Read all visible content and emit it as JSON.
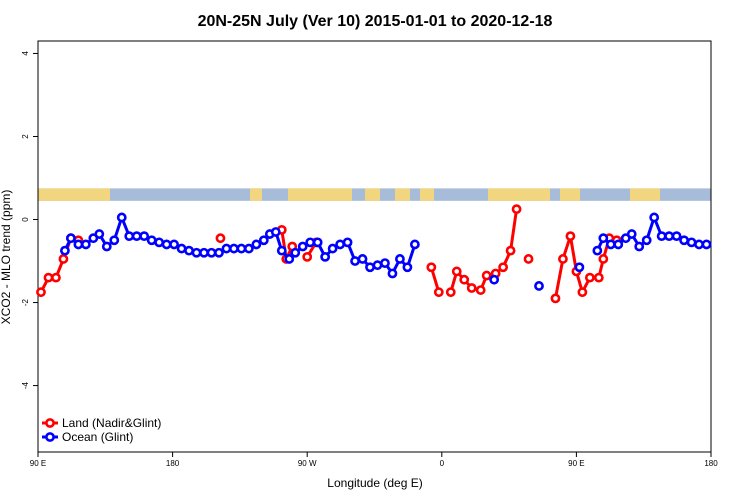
{
  "chart_data": {
    "type": "line",
    "title": "20N-25N July (Ver 10)   2015-01-01 to 2020-12-18",
    "xlabel": "Longitude (deg E)",
    "ylabel": "XCO2 - MLO trend (ppm)",
    "xlim": [
      90,
      540
    ],
    "ylim": [
      -5.6,
      4.3
    ],
    "x_ticks": [
      {
        "value": 90,
        "label": "90 E"
      },
      {
        "value": 180,
        "label": "180"
      },
      {
        "value": 270,
        "label": "90 W"
      },
      {
        "value": 360,
        "label": "0"
      },
      {
        "value": 450,
        "label": "90 E"
      },
      {
        "value": 540,
        "label": "180"
      }
    ],
    "y_ticks": [
      {
        "value": -4,
        "label": "-4"
      },
      {
        "value": -2,
        "label": "-2"
      },
      {
        "value": 0,
        "label": "0"
      },
      {
        "value": 2,
        "label": "2"
      },
      {
        "value": 4,
        "label": "4"
      }
    ],
    "map_strip": {
      "ymin": 0.45,
      "ymax": 0.75,
      "ocean_color": "#a6bcd9",
      "land_color": "#f6d77a"
    },
    "legend_position": "bottom-left",
    "series": [
      {
        "name": "Land (Nadir&Glint)",
        "color": "#ff0000",
        "segments": [
          [
            [
              92.5,
              -1.7
            ],
            [
              97.5,
              -1.4
            ],
            [
              102.5,
              -1.4
            ],
            [
              107.5,
              -0.95
            ],
            [
              112.5,
              -0.45
            ],
            [
              117.5,
              -0.5
            ]
          ],
          [
            [
              112.5,
              -0.45
            ],
            [
              117.5,
              -0.5
            ]
          ],
          [
            [
              112.5,
              -0.45
            ],
            [
              117.5,
              -0.5
            ]
          ],
          [
            [
              112.5,
              -0.45
            ]
          ],
          [
            [
              112.5,
              -0.45
            ],
            [
              117.5,
              -0.5
            ]
          ],
          [
            [
              112.5,
              -0.45
            ],
            [
              117.5,
              -0.5
            ]
          ]
        ],
        "points": [
          [
            92.5,
            -1.7
          ],
          [
            97.5,
            -1.4
          ],
          [
            102.5,
            -1.4
          ],
          [
            107.5,
            -0.95
          ],
          [
            112.5,
            -0.45
          ],
          [
            117.5,
            -0.5
          ],
          [
            112.5,
            -0.45
          ],
          [
            112.5,
            -0.45
          ],
          [
            112.5,
            -0.45
          ],
          [
            112.5,
            -0.45
          ],
          [
            112.5,
            -0.45
          ],
          [
            112.5,
            -0.45
          ],
          [
            112.5,
            -0.45
          ],
          [
            112.5,
            -0.45
          ],
          [
            112.5,
            -0.45
          ],
          [
            112.5,
            -0.45
          ],
          [
            112.5,
            -0.45
          ],
          [
            112.5,
            -0.45
          ],
          [
            112.5,
            -0.45
          ],
          [
            112.5,
            -0.45
          ],
          [
            112.5,
            -0.45
          ],
          [
            112.5,
            -0.45
          ],
          [
            112.5,
            -0.45
          ],
          [
            112.5,
            -0.45
          ],
          [
            112.5,
            -0.45
          ],
          [
            112.5,
            -0.45
          ],
          [
            112.5,
            -0.45
          ],
          [
            112.5,
            -0.45
          ],
          [
            112.5,
            -0.45
          ],
          [
            112.5,
            -0.45
          ],
          [
            112.5,
            -0.45
          ],
          [
            112.5,
            -0.45
          ],
          [
            112.5,
            -0.45
          ],
          [
            112.5,
            -0.45
          ],
          [
            112.5,
            -0.45
          ],
          [
            112.5,
            -0.45
          ],
          [
            112.5,
            -0.45
          ],
          [
            112.5,
            -0.45
          ],
          [
            112.5,
            -0.45
          ],
          [
            112.5,
            -0.45
          ],
          [
            112.5,
            -0.45
          ],
          [
            112.5,
            -0.45
          ],
          [
            112.5,
            -0.45
          ],
          [
            112.5,
            -0.45
          ],
          [
            112.5,
            -0.45
          ],
          [
            112.5,
            -0.45
          ],
          [
            112.5,
            -0.45
          ],
          [
            112.5,
            -0.45
          ],
          [
            112.5,
            -0.45
          ],
          [
            112.5,
            -0.45
          ],
          [
            112.5,
            -0.45
          ],
          [
            112.5,
            -0.45
          ],
          [
            112.5,
            -0.45
          ],
          [
            112.5,
            -0.45
          ],
          [
            112.5,
            -0.45
          ],
          [
            112.5,
            -0.45
          ],
          [
            112.5,
            -0.45
          ],
          [
            112.5,
            -0.45
          ],
          [
            112.5,
            -0.45
          ],
          [
            112.5,
            -0.45
          ],
          [
            112.5,
            -0.45
          ],
          [
            112.5,
            -0.45
          ],
          [
            112.5,
            -0.45
          ],
          [
            112.5,
            -0.45
          ],
          [
            112.5,
            -0.45
          ],
          [
            112.5,
            -0.45
          ],
          [
            112.5,
            -0.45
          ],
          [
            112.5,
            -0.45
          ],
          [
            112.5,
            -0.45
          ],
          [
            112.5,
            -0.45
          ],
          [
            112.5,
            -0.45
          ],
          [
            112.5,
            -0.45
          ],
          [
            112.5,
            -0.45
          ],
          [
            112.5,
            -0.45
          ],
          [
            112.5,
            -0.45
          ],
          [
            112.5,
            -0.45
          ],
          [
            112.5,
            -0.45
          ],
          [
            112.5,
            -0.45
          ],
          [
            112.5,
            -0.45
          ],
          [
            112.5,
            -0.45
          ],
          [
            112.5,
            -0.45
          ],
          [
            112.5,
            -0.45
          ],
          [
            112.5,
            -0.45
          ],
          [
            112.5,
            -0.45
          ],
          [
            112.5,
            -0.45
          ],
          [
            112.5,
            -0.45
          ],
          [
            112.5,
            -0.45
          ],
          [
            112.5,
            -0.45
          ],
          [
            112.5,
            -0.45
          ],
          [
            112.5,
            -0.45
          ],
          [
            112.5,
            -0.45
          ],
          [
            112.5,
            -0.45
          ]
        ]
      }
    ]
  }
}
